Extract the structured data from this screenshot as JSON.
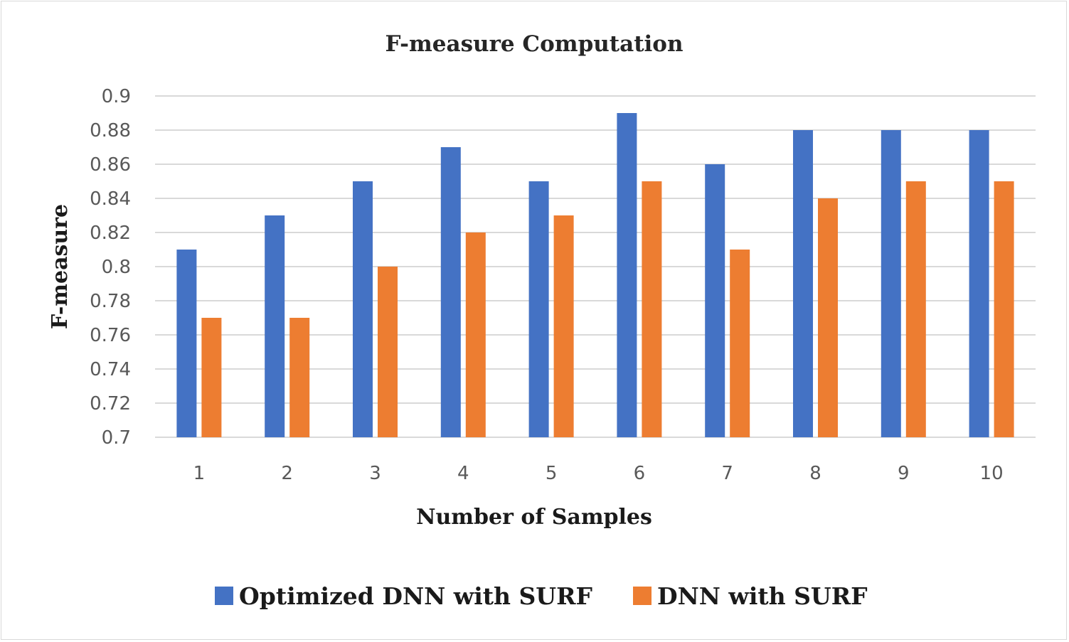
{
  "chart_data": {
    "type": "bar",
    "title": "F-measure  Computation",
    "xlabel": "Number of Samples",
    "ylabel": "F-measure",
    "ylim": [
      0.7,
      0.9
    ],
    "yticks": [
      "0.7",
      "0.72",
      "0.74",
      "0.76",
      "0.78",
      "0.8",
      "0.82",
      "0.84",
      "0.86",
      "0.88",
      "0.9"
    ],
    "grid": true,
    "legend_position": "bottom",
    "categories": [
      "1",
      "2",
      "3",
      "4",
      "5",
      "6",
      "7",
      "8",
      "9",
      "10"
    ],
    "series": [
      {
        "name": "Optimized DNN with SURF",
        "color": "#4472c4",
        "values": [
          0.81,
          0.83,
          0.85,
          0.87,
          0.85,
          0.89,
          0.86,
          0.88,
          0.88,
          0.88
        ]
      },
      {
        "name": "DNN with SURF",
        "color": "#ed7d31",
        "values": [
          0.77,
          0.77,
          0.8,
          0.82,
          0.83,
          0.85,
          0.81,
          0.84,
          0.85,
          0.85
        ]
      }
    ]
  }
}
